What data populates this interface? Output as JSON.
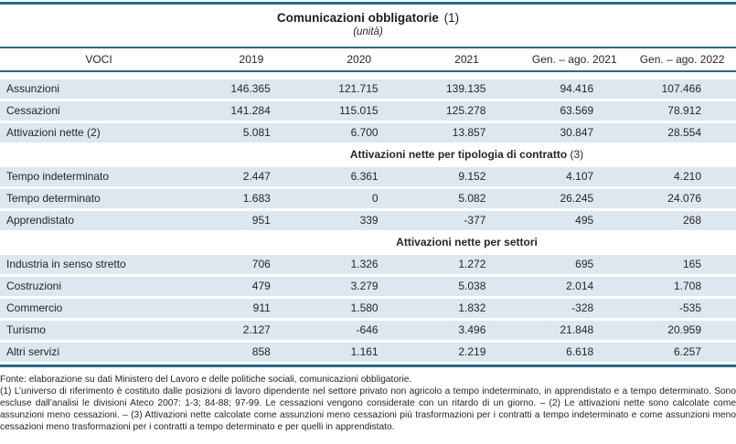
{
  "title": {
    "main": "Comunicazioni obbligatorie",
    "note_ref": "(1)",
    "subtitle": "(unità)"
  },
  "table": {
    "columns": [
      "VOCI",
      "2019",
      "2020",
      "2021",
      "Gen. – ago. 2021",
      "Gen. – ago. 2022"
    ],
    "sections": [
      {
        "header": "",
        "header_ref": "",
        "rows": [
          {
            "label": "Assunzioni",
            "values": [
              "146.365",
              "121.715",
              "139.135",
              "94.416",
              "107.466"
            ]
          },
          {
            "label": "Cessazioni",
            "values": [
              "141.284",
              "115.015",
              "125.278",
              "63.569",
              "78.912"
            ]
          },
          {
            "label": "Attivazioni nette (2)",
            "values": [
              "5.081",
              "6.700",
              "13.857",
              "30.847",
              "28.554"
            ]
          }
        ]
      },
      {
        "header": "Attivazioni nette per tipologia di contratto",
        "header_ref": "(3)",
        "rows": [
          {
            "label": "Tempo indeterminato",
            "values": [
              "2.447",
              "6.361",
              "9.152",
              "4.107",
              "4.210"
            ]
          },
          {
            "label": "Tempo determinato",
            "values": [
              "1.683",
              "0",
              "5.082",
              "26.245",
              "24.076"
            ]
          },
          {
            "label": "Apprendistato",
            "values": [
              "951",
              "339",
              "-377",
              "495",
              "268"
            ]
          }
        ]
      },
      {
        "header": "Attivazioni nette per settori",
        "header_ref": "",
        "rows": [
          {
            "label": "Industria in senso stretto",
            "values": [
              "706",
              "1.326",
              "1.272",
              "695",
              "165"
            ]
          },
          {
            "label": "Costruzioni",
            "values": [
              "479",
              "3.279",
              "5.038",
              "2.014",
              "1.708"
            ]
          },
          {
            "label": "Commercio",
            "values": [
              "911",
              "1.580",
              "1.832",
              "-328",
              "-535"
            ]
          },
          {
            "label": "Turismo",
            "values": [
              "2.127",
              "-646",
              "3.496",
              "21.848",
              "20.959"
            ]
          },
          {
            "label": "Altri servizi",
            "values": [
              "858",
              "1.161",
              "2.219",
              "6.618",
              "6.257"
            ]
          }
        ]
      }
    ]
  },
  "footer": {
    "fonte": "Fonte: elaborazione su dati Ministero del Lavoro e delle politiche sociali, comunicazioni obbligatorie.",
    "note": "(1) L’universo di riferimento è costituto dalle posizioni di lavoro dipendente nel settore privato non agricolo a tempo indeterminato, in apprendistato e a tempo determinato. Sono escluse dall’analisi le divisioni Ateco 2007: 1-3; 84-88; 97-99. Le cessazioni vengono considerate con un ritardo di un giorno. – (2) Le attivazioni nette sono calcolate come assunzioni meno cessazioni. – (3) Attivazioni nette calcolate come assunzioni meno cessazioni più trasformazioni per i contratti a tempo indeterminato e come assunzioni meno cessazioni meno trasformazioni per i contratti a tempo determinato e per quelli in apprendistato."
  },
  "colors": {
    "rule": "#27698a",
    "row_background": "#dce7f0",
    "text": "#262626"
  }
}
